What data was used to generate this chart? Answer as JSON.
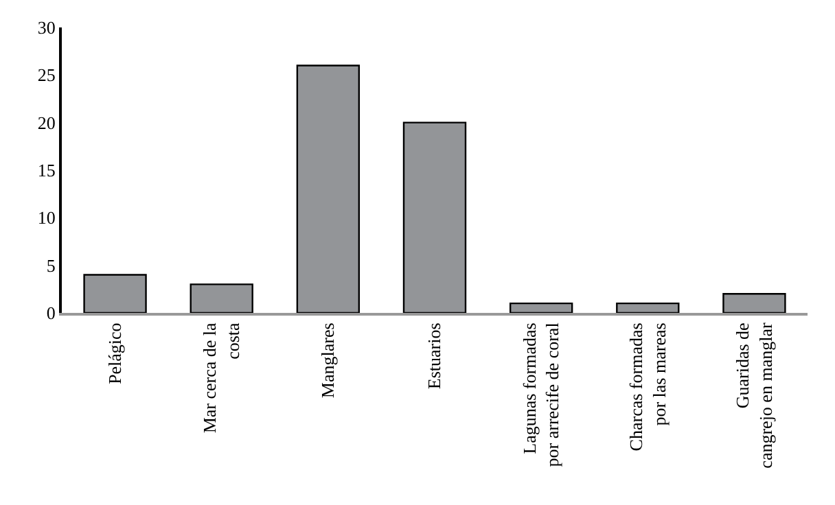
{
  "chart_data": {
    "type": "bar",
    "categories": [
      "Pelágico",
      "Mar cerca de la\ncosta",
      "Manglares",
      "Estuarios",
      "Lagunas formadas\npor arrecife de coral",
      "Charcas formadas\npor las mareas",
      "Guaridas de\ncangrejo en manglar"
    ],
    "values": [
      4,
      3,
      26,
      20,
      1,
      1,
      2
    ],
    "color": "#939598",
    "ylim": [
      0,
      30
    ],
    "yticks": [
      0,
      5,
      10,
      15,
      20,
      25,
      30
    ]
  }
}
